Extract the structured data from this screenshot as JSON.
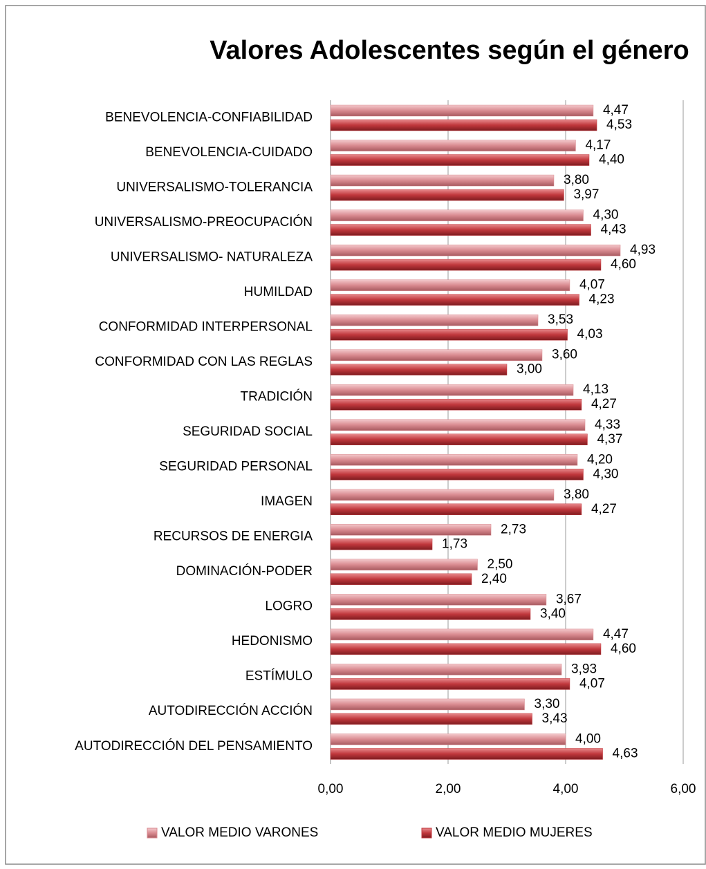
{
  "chart_data": {
    "type": "bar",
    "orientation": "horizontal",
    "title": "Valores Adolescentes según el género",
    "categories": [
      "BENEVOLENCIA-CONFIABILIDAD",
      "BENEVOLENCIA-CUIDADO",
      "UNIVERSALISMO-TOLERANCIA",
      "UNIVERSALISMO-PREOCUPACIÓN",
      "UNIVERSALISMO- NATURALEZA",
      "HUMILDAD",
      "CONFORMIDAD INTERPERSONAL",
      "CONFORMIDAD CON LAS REGLAS",
      "TRADICIÓN",
      "SEGURIDAD SOCIAL",
      "SEGURIDAD PERSONAL",
      "IMAGEN",
      "RECURSOS DE ENERGIA",
      "DOMINACIÓN-PODER",
      "LOGRO",
      "HEDONISMO",
      "ESTÍMULO",
      "AUTODIRECCIÓN ACCIÓN",
      "AUTODIRECCIÓN DEL PENSAMIENTO"
    ],
    "series": [
      {
        "name": "VALOR MEDIO VARONES",
        "color": "#d98a90",
        "values": [
          4.47,
          4.17,
          3.8,
          4.3,
          4.93,
          4.07,
          3.53,
          3.6,
          4.13,
          4.33,
          4.2,
          3.8,
          2.73,
          2.5,
          3.67,
          4.47,
          3.93,
          3.3,
          4.0
        ],
        "value_labels": [
          "4,47",
          "4,17",
          "3,80",
          "4,30",
          "4,93",
          "4,07",
          "3,53",
          "3,60",
          "4,13",
          "4,33",
          "4,20",
          "3,80",
          "2,73",
          "2,50",
          "3,67",
          "4,47",
          "3,93",
          "3,30",
          "4,00"
        ]
      },
      {
        "name": "VALOR MEDIO MUJERES",
        "color": "#c0373c",
        "values": [
          4.53,
          4.4,
          3.97,
          4.43,
          4.6,
          4.23,
          4.03,
          3.0,
          4.27,
          4.37,
          4.3,
          4.27,
          1.73,
          2.4,
          3.4,
          4.6,
          4.07,
          3.43,
          4.63
        ],
        "value_labels": [
          "4,53",
          "4,40",
          "3,97",
          "4,43",
          "4,60",
          "4,23",
          "4,03",
          "3,00",
          "4,27",
          "4,37",
          "4,30",
          "4,27",
          "1,73",
          "2,40",
          "3,40",
          "4,60",
          "4,07",
          "3,43",
          "4,63"
        ]
      }
    ],
    "xlim": [
      0,
      6
    ],
    "xticks": [
      {
        "value": 0,
        "label": "0,00"
      },
      {
        "value": 2,
        "label": "2,00"
      },
      {
        "value": 4,
        "label": "4,00"
      },
      {
        "value": 6,
        "label": "6,00"
      }
    ],
    "grid": true,
    "legend": "bottom"
  }
}
